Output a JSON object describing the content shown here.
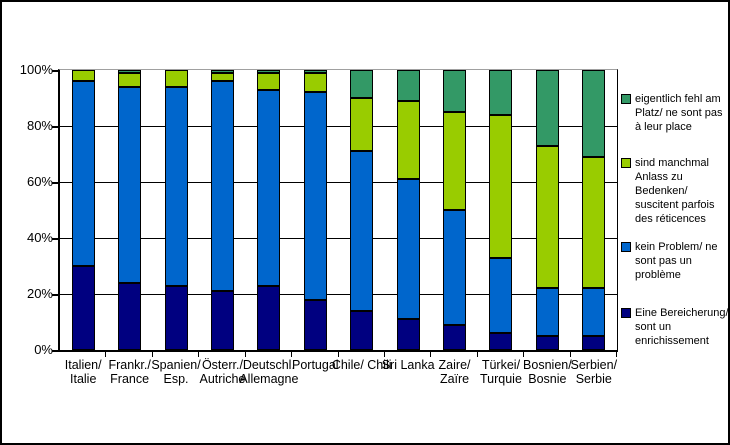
{
  "chart_data": {
    "type": "bar",
    "stacked": true,
    "title": "",
    "xlabel": "",
    "ylabel": "",
    "ylim": [
      0,
      100
    ],
    "grid": true,
    "legend_position": "right",
    "yticks": [
      {
        "value": 0,
        "label": "0%"
      },
      {
        "value": 20,
        "label": "20%"
      },
      {
        "value": 40,
        "label": "40%"
      },
      {
        "value": 60,
        "label": "60%"
      },
      {
        "value": 80,
        "label": "80%"
      },
      {
        "value": 100,
        "label": "100%"
      }
    ],
    "categories": [
      {
        "key": "italien",
        "lines": [
          "Italien/",
          "Italie"
        ]
      },
      {
        "key": "frankreich",
        "lines": [
          "Frankr./",
          "France"
        ]
      },
      {
        "key": "spanien",
        "lines": [
          "Spanien/",
          "Esp."
        ]
      },
      {
        "key": "oesterreich",
        "lines": [
          "Österr./",
          "Autriche"
        ]
      },
      {
        "key": "deutschland",
        "lines": [
          "Deutschl.",
          "Allemagne"
        ]
      },
      {
        "key": "portugal",
        "lines": [
          "Portugal"
        ]
      },
      {
        "key": "chile",
        "lines": [
          "Chile/ Chili"
        ]
      },
      {
        "key": "sri-lanka",
        "lines": [
          "Sri Lanka"
        ]
      },
      {
        "key": "zaire",
        "lines": [
          "Zaire/",
          "Zaïre"
        ]
      },
      {
        "key": "tuerkei",
        "lines": [
          "Türkei/",
          "Turquie"
        ]
      },
      {
        "key": "bosnien",
        "lines": [
          "Bosnien/",
          "Bosnie"
        ]
      },
      {
        "key": "serbien",
        "lines": [
          "Serbien/",
          "Serbie"
        ]
      }
    ],
    "series": [
      {
        "key": "bereicherung",
        "name": "Eine Bereicherung/ sont un enrichissement",
        "color": "#000080",
        "values": [
          30,
          24,
          23,
          21,
          23,
          18,
          14,
          11,
          9,
          6,
          5,
          5
        ]
      },
      {
        "key": "kein-problem",
        "name": "kein Problem/ ne sont pas un problème",
        "color": "#0066CC",
        "values": [
          66,
          70,
          71,
          75,
          70,
          74,
          57,
          50,
          41,
          27,
          17,
          17
        ]
      },
      {
        "key": "manchmal-anlass",
        "name": "sind manchmal Anlass zu Bedenken/ suscitent parfois des réticences",
        "color": "#99CC00",
        "values": [
          4,
          5,
          6,
          3,
          6,
          7,
          19,
          28,
          35,
          51,
          51,
          47
        ]
      },
      {
        "key": "fehl-am-platz",
        "name": "eigentlich fehl am Platz/ ne sont pas à leur place",
        "color": "#339966",
        "values": [
          0,
          1,
          0,
          1,
          1,
          1,
          10,
          11,
          15,
          16,
          27,
          31
        ]
      }
    ]
  },
  "legend": {
    "items": [
      {
        "key": "fehl-am-platz",
        "color": "#339966",
        "lines": [
          "eigentlich fehl am",
          "Platz/ ne sont pas",
          "à leur place"
        ]
      },
      {
        "key": "manchmal-anlass",
        "color": "#99CC00",
        "lines": [
          "sind manchmal",
          "Anlass zu",
          "Bedenken/",
          "suscitent parfois",
          "des réticences"
        ]
      },
      {
        "key": "kein-problem",
        "color": "#0066CC",
        "lines": [
          "kein Problem/ ne",
          "sont pas un",
          "problème"
        ]
      },
      {
        "key": "bereicherung",
        "color": "#000080",
        "lines": [
          "Eine Bereicherung/",
          "sont un",
          "enrichissement"
        ]
      }
    ]
  },
  "colors": {
    "grid": "#000000",
    "grid_top": "#A0A0A0",
    "axis": "#000000",
    "bar_border": "#000000",
    "frame_border": "#000000",
    "background": "#FFFFFF"
  }
}
